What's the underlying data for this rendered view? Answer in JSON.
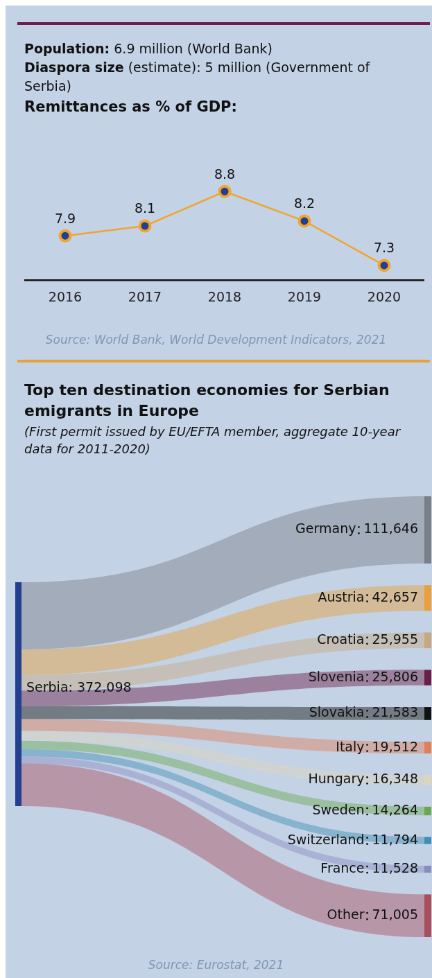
{
  "chart_data": [
    {
      "type": "line",
      "title": "Remittances as % of GDP:",
      "categories": [
        "2016",
        "2017",
        "2018",
        "2019",
        "2020"
      ],
      "series": [
        {
          "color": "#f0a530",
          "values": [
            7.9,
            8.1,
            8.8,
            8.2,
            7.3
          ]
        }
      ],
      "tick_labels": "x",
      "data_labels": true,
      "marker": "circle",
      "grid": false,
      "legend": false,
      "annotations": [
        "Population: 6.9 million (World Bank)",
        "Diaspora size (estimate): 5 million (Government of Serbia)",
        "Source: World Bank, World Development Indicators, 2021"
      ]
    },
    {
      "type": "other",
      "title": "Top ten destination economies for Serbian emigrants in Europe",
      "subtitle": "(First permit issued by EU/EFTA member, aggregate 10-year data for 2011-2020)",
      "categories": [
        "Germany",
        "Austria",
        "Croatia",
        "Slovenia",
        "Slovakia",
        "Italy",
        "Hungary",
        "Sweden",
        "Switzerland",
        "France",
        "Other"
      ],
      "values": [
        111646,
        42657,
        25955,
        25806,
        21583,
        19512,
        16348,
        14264,
        11794,
        11528,
        71005
      ],
      "colors": [
        "#7a7f87",
        "#e9a03c",
        "#c8a883",
        "#6b1f48",
        "#111111",
        "#e07f5a",
        "#ddd5bc",
        "#6aa84f",
        "#3f8fb5",
        "#8a8cc0",
        "#a84f5e"
      ],
      "value_labels": [
        "111,646",
        "42,657",
        "25,955",
        "25,806",
        "21,583",
        "19,512",
        "16,348",
        "14,264",
        "11,794",
        "11,528",
        "71,005"
      ],
      "color": "#233f8f",
      "data_labels": true,
      "annotations": [
        "Serbia: 372,098",
        "Source: Eurostat, 2021"
      ]
    }
  ]
}
